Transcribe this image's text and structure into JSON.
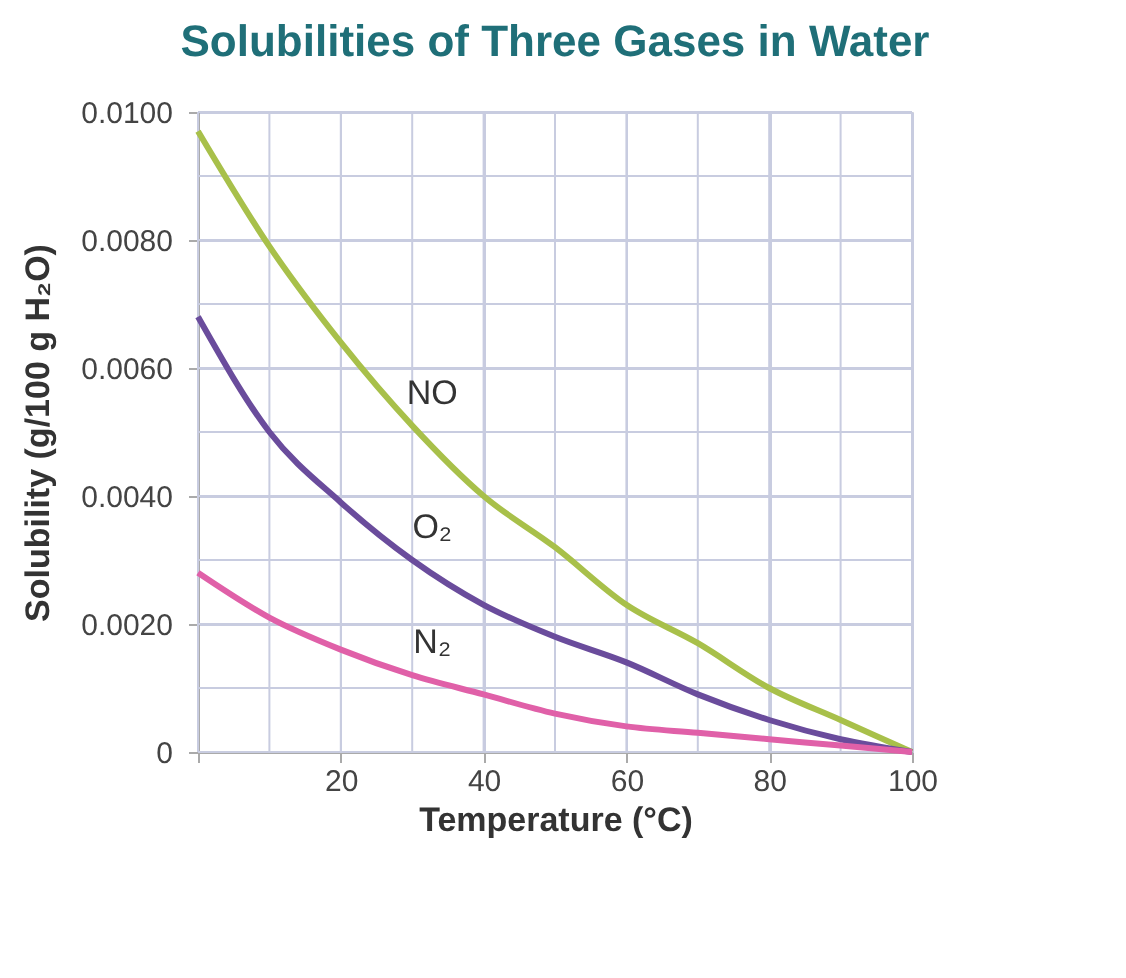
{
  "chart_data": {
    "type": "line",
    "title": "Solubilities of Three Gases in Water",
    "xlabel": "Temperature (°C)",
    "ylabel": "Solubility (g/100 g H₂O)",
    "x": [
      0,
      10,
      20,
      30,
      40,
      50,
      60,
      70,
      80,
      90,
      100
    ],
    "series": [
      {
        "name": "NO",
        "color": "#a8c04a",
        "values": [
          0.0097,
          0.0079,
          0.0064,
          0.0051,
          0.004,
          0.0032,
          0.0023,
          0.0017,
          0.001,
          0.0005,
          0.0
        ]
      },
      {
        "name": "O₂",
        "color": "#6a4c9c",
        "values": [
          0.0068,
          0.005,
          0.0039,
          0.003,
          0.0023,
          0.0018,
          0.0014,
          0.0009,
          0.0005,
          0.0002,
          0.0
        ]
      },
      {
        "name": "N₂",
        "color": "#e060a8",
        "values": [
          0.0028,
          0.0021,
          0.0016,
          0.0012,
          0.0009,
          0.0006,
          0.0004,
          0.0003,
          0.0002,
          0.0001,
          0.0
        ]
      }
    ],
    "xlim": [
      0,
      100
    ],
    "xticks": [
      {
        "value": 0,
        "label": null
      },
      {
        "value": 10,
        "label": null
      },
      20,
      {
        "value": 30,
        "label": null
      },
      40,
      {
        "value": 50,
        "label": null
      },
      60,
      {
        "value": 70,
        "label": null
      },
      80,
      {
        "value": 90,
        "label": null
      },
      100
    ],
    "ylim": [
      0,
      0.01
    ],
    "yticks": [
      0,
      {
        "value": 0.001,
        "label": null
      },
      {
        "value": 0.002,
        "label": "0.0020"
      },
      {
        "value": 0.003,
        "label": null
      },
      {
        "value": 0.004,
        "label": "0.0040"
      },
      {
        "value": 0.005,
        "label": null
      },
      {
        "value": 0.006,
        "label": "0.0060"
      },
      {
        "value": 0.007,
        "label": null
      },
      {
        "value": 0.008,
        "label": "0.0080"
      },
      {
        "value": 0.009,
        "label": null
      },
      {
        "value": 0.01,
        "label": "0.0100"
      }
    ],
    "grid": true,
    "legend": false,
    "marker": "none",
    "line_style": "solid"
  }
}
